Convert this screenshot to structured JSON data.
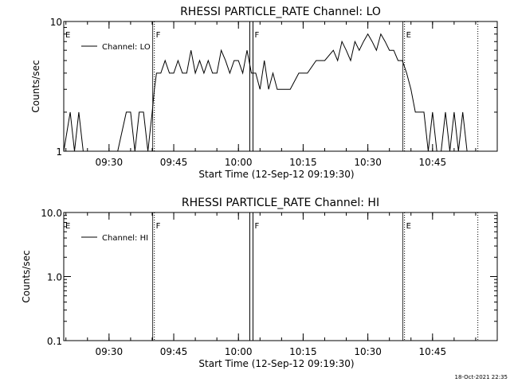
{
  "footer": "18-Oct-2021 22:35",
  "chart_data": [
    {
      "type": "line",
      "title": "RHESSI PARTICLE_RATE Channel: LO",
      "xlabel": "Start Time (12-Sep-12 09:19:30)",
      "ylabel": "Counts/sec",
      "y_scale": "log",
      "ylim": [
        1,
        10
      ],
      "xlim": [
        "09:19:30",
        "11:00:00"
      ],
      "x_ticks": [
        "09:30",
        "09:45",
        "10:00",
        "10:15",
        "10:30",
        "10:45"
      ],
      "y_ticks": [
        "1",
        "10"
      ],
      "legend": "upper-left",
      "series": [
        {
          "name": "Channel: LO",
          "x": [
            "09:19:30",
            "09:21:00",
            "09:22:00",
            "09:23:00",
            "09:24:00",
            "09:25:00",
            "09:26:00",
            "09:27:00",
            "09:28:00",
            "09:30:00",
            "09:32:00",
            "09:34:00",
            "09:35:00",
            "09:36:00",
            "09:37:00",
            "09:38:00",
            "09:39:00",
            "09:40:00",
            "09:40:30",
            "09:41:00",
            "09:42:00",
            "09:43:00",
            "09:44:00",
            "09:45:00",
            "09:46:00",
            "09:47:00",
            "09:48:00",
            "09:49:00",
            "09:50:00",
            "09:51:00",
            "09:52:00",
            "09:53:00",
            "09:54:00",
            "09:55:00",
            "09:56:00",
            "09:57:00",
            "09:58:00",
            "09:59:00",
            "10:00:00",
            "10:01:00",
            "10:02:00",
            "10:03:00",
            "10:04:00",
            "10:05:00",
            "10:06:00",
            "10:07:00",
            "10:08:00",
            "10:09:00",
            "10:10:00",
            "10:12:00",
            "10:14:00",
            "10:15:00",
            "10:16:00",
            "10:18:00",
            "10:20:00",
            "10:22:00",
            "10:23:00",
            "10:24:00",
            "10:25:00",
            "10:26:00",
            "10:27:00",
            "10:28:00",
            "10:29:00",
            "10:30:00",
            "10:31:00",
            "10:32:00",
            "10:33:00",
            "10:34:00",
            "10:35:00",
            "10:36:00",
            "10:37:00",
            "10:38:00",
            "10:39:00",
            "10:40:00",
            "10:41:00",
            "10:42:00",
            "10:43:00",
            "10:44:00",
            "10:45:00",
            "10:46:00",
            "10:47:00",
            "10:48:00",
            "10:49:00",
            "10:50:00",
            "10:51:00",
            "10:52:00",
            "10:53:00"
          ],
          "y": [
            1,
            2,
            1,
            2,
            1,
            1,
            1,
            1,
            1,
            1,
            1,
            2,
            2,
            1,
            2,
            2,
            1,
            2,
            3,
            4,
            4,
            5,
            4,
            4,
            5,
            4,
            4,
            6,
            4,
            5,
            4,
            5,
            4,
            4,
            6,
            5,
            4,
            5,
            5,
            4,
            6,
            4,
            4,
            3,
            5,
            3,
            4,
            3,
            3,
            3,
            4,
            4,
            4,
            5,
            5,
            6,
            5,
            7,
            6,
            5,
            7,
            6,
            7,
            8,
            7,
            6,
            8,
            7,
            6,
            6,
            5,
            5,
            4,
            3,
            2,
            2,
            2,
            1,
            2,
            1,
            1,
            2,
            1,
            2,
            1,
            2,
            1
          ]
        }
      ],
      "markers": [
        {
          "label": "E",
          "time": "09:19:30",
          "style": "dotted"
        },
        {
          "label": "F",
          "time": "09:40:30",
          "style": "dotted"
        },
        {
          "label": "F",
          "time": "10:03:00",
          "style": "double"
        },
        {
          "label": "E",
          "time": "10:38:30",
          "style": "dotted"
        },
        {
          "label": "",
          "time": "10:55:30",
          "style": "dotted"
        }
      ]
    },
    {
      "type": "line",
      "title": "RHESSI PARTICLE_RATE Channel: HI",
      "xlabel": "Start Time (12-Sep-12 09:19:30)",
      "ylabel": "Counts/sec",
      "y_scale": "log",
      "ylim": [
        0.1,
        10
      ],
      "xlim": [
        "09:19:30",
        "11:00:00"
      ],
      "x_ticks": [
        "09:30",
        "09:45",
        "10:00",
        "10:15",
        "10:30",
        "10:45"
      ],
      "y_ticks": [
        "10.0",
        "1.0",
        "0.1"
      ],
      "legend": "upper-left",
      "series": [
        {
          "name": "Channel: HI",
          "x": [],
          "y": []
        }
      ],
      "markers": [
        {
          "label": "E",
          "time": "09:19:30",
          "style": "dotted"
        },
        {
          "label": "F",
          "time": "09:40:30",
          "style": "dotted"
        },
        {
          "label": "F",
          "time": "10:03:00",
          "style": "double"
        },
        {
          "label": "E",
          "time": "10:38:30",
          "style": "dotted"
        },
        {
          "label": "",
          "time": "10:55:30",
          "style": "dotted"
        }
      ]
    }
  ]
}
